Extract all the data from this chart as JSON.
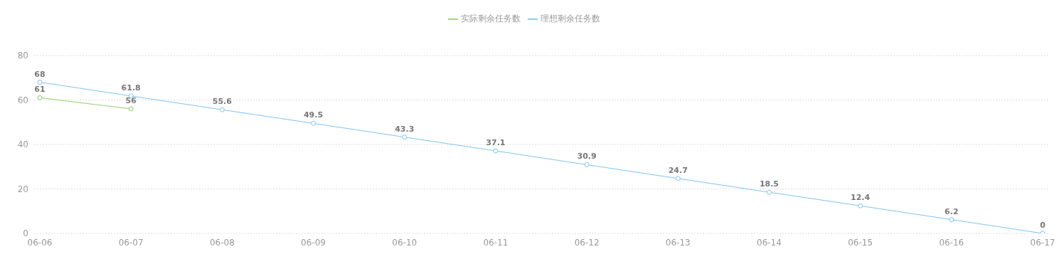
{
  "chart_data": {
    "type": "line",
    "categories": [
      "06-06",
      "06-07",
      "06-08",
      "06-09",
      "06-10",
      "06-11",
      "06-12",
      "06-13",
      "06-14",
      "06-15",
      "06-16",
      "06-17"
    ],
    "series": [
      {
        "name": "理想剩余任务数",
        "color": "#7cc4f5",
        "values": [
          68,
          61.8,
          55.6,
          49.5,
          43.3,
          37.1,
          30.9,
          24.7,
          18.5,
          12.4,
          6.2,
          0
        ]
      },
      {
        "name": "实际剩余任务数",
        "color": "#8fd16a",
        "values": [
          61,
          56,
          null,
          null,
          null,
          null,
          null,
          null,
          null,
          null,
          null,
          null
        ]
      }
    ],
    "ylim": [
      0,
      80
    ],
    "yticks": [
      0,
      20,
      40,
      60,
      80
    ],
    "grid": "y",
    "legend": "top",
    "marker": "circle",
    "line_style": "solid",
    "data_labels": true
  }
}
